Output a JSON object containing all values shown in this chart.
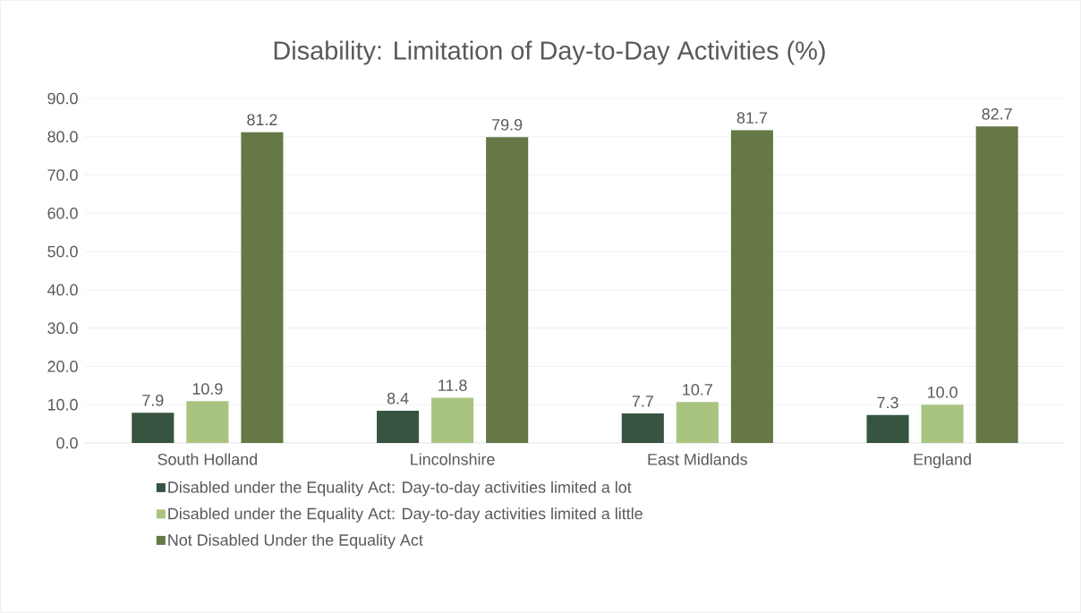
{
  "chart_data": {
    "type": "bar",
    "title": "Disability: Limitation of Day-to-Day Activities (%)",
    "categories": [
      "South Holland",
      "Lincolnshire",
      "East Midlands",
      "England"
    ],
    "series": [
      {
        "name": "Disabled under the Equality Act: Day-to-day activities limited a lot",
        "color": "#375440",
        "values": [
          7.9,
          8.4,
          7.7,
          7.3
        ],
        "value_labels": [
          "7.9",
          "8.4",
          "7.7",
          "7.3"
        ]
      },
      {
        "name": "Disabled under the Equality Act: Day-to-day activities limited a little",
        "color": "#a9c47f",
        "values": [
          10.9,
          11.8,
          10.7,
          10.0
        ],
        "value_labels": [
          "10.9",
          "11.8",
          "10.7",
          "10.0"
        ]
      },
      {
        "name": "Not Disabled Under the Equality Act",
        "color": "#667845",
        "values": [
          81.2,
          79.9,
          81.7,
          82.7
        ],
        "value_labels": [
          "81.2",
          "79.9",
          "81.7",
          "82.7"
        ]
      }
    ],
    "ylim": [
      0,
      90
    ],
    "yticks": [
      {
        "value": 0,
        "label": "0.0"
      },
      {
        "value": 10,
        "label": "10.0"
      },
      {
        "value": 20,
        "label": "20.0"
      },
      {
        "value": 30,
        "label": "30.0"
      },
      {
        "value": 40,
        "label": "40.0"
      },
      {
        "value": 50,
        "label": "50.0"
      },
      {
        "value": 60,
        "label": "60.0"
      },
      {
        "value": 70,
        "label": "70.0"
      },
      {
        "value": 80,
        "label": "80.0"
      },
      {
        "value": 90,
        "label": "90.0"
      }
    ],
    "grid": "y",
    "legend": "bottom"
  }
}
